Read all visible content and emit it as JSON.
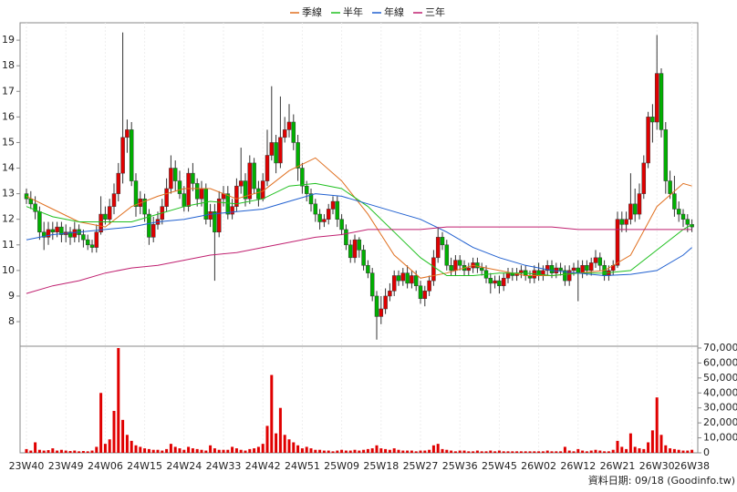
{
  "chart_data": {
    "type": "candlestick",
    "categories": [
      "23W40",
      null,
      null,
      null,
      null,
      null,
      null,
      null,
      null,
      "23W49",
      null,
      null,
      null,
      null,
      null,
      null,
      null,
      null,
      "24W06",
      null,
      null,
      null,
      null,
      null,
      null,
      null,
      null,
      "24W15",
      null,
      null,
      null,
      null,
      null,
      null,
      null,
      null,
      "24W24",
      null,
      null,
      null,
      null,
      null,
      null,
      null,
      null,
      "24W33",
      null,
      null,
      null,
      null,
      null,
      null,
      null,
      null,
      "24W42",
      null,
      null,
      null,
      null,
      null,
      null,
      null,
      null,
      "24W51",
      null,
      null,
      null,
      null,
      null,
      null,
      null,
      null,
      "25W09",
      null,
      null,
      null,
      null,
      null,
      null,
      null,
      null,
      "25W18",
      null,
      null,
      null,
      null,
      null,
      null,
      null,
      null,
      "25W27",
      null,
      null,
      null,
      null,
      null,
      null,
      null,
      null,
      "25W36",
      null,
      null,
      null,
      null,
      null,
      null,
      null,
      null,
      "25W45",
      null,
      null,
      null,
      null,
      null,
      null,
      null,
      null,
      "26W02",
      null,
      null,
      null,
      null,
      null,
      null,
      null,
      null,
      "26W12",
      null,
      null,
      null,
      null,
      null,
      null,
      null,
      null,
      "26W21",
      null,
      null,
      null,
      null,
      null,
      null,
      null,
      null,
      "26W30",
      null,
      null,
      null,
      null,
      null,
      null,
      null,
      "26W38"
    ],
    "open": [
      13.0,
      12.8,
      12.6,
      12.3,
      11.5,
      11.3,
      11.6,
      11.5,
      11.7,
      11.4,
      11.5,
      11.3,
      11.6,
      11.4,
      11.2,
      11.0,
      10.9,
      11.5,
      12.2,
      12.0,
      12.5,
      13.0,
      13.8,
      15.2,
      15.5,
      13.5,
      12.5,
      12.8,
      12.2,
      11.3,
      11.8,
      12.0,
      12.5,
      13.2,
      14.0,
      13.5,
      13.0,
      12.5,
      13.8,
      13.4,
      12.8,
      13.2,
      12.0,
      12.3,
      11.5,
      12.8,
      13.0,
      12.2,
      12.5,
      13.3,
      13.5,
      12.8,
      14.2,
      13.2,
      12.8,
      13.5,
      14.5,
      15.0,
      14.2,
      15.2,
      15.5,
      15.8,
      15.0,
      14.0,
      13.3,
      13.0,
      12.6,
      12.2,
      11.9,
      12.0,
      12.4,
      12.7,
      12.0,
      11.6,
      11.0,
      10.5,
      11.2,
      10.8,
      10.2,
      9.9,
      9.0,
      8.2,
      8.5,
      9.0,
      9.2,
      9.8,
      9.6,
      9.9,
      9.5,
      9.8,
      9.4,
      8.9,
      9.2,
      9.6,
      10.5,
      11.3,
      11.0,
      10.2,
      10.0,
      10.4,
      10.2,
      10.0,
      10.1,
      10.3,
      10.1,
      10.0,
      9.7,
      9.5,
      9.6,
      9.4,
      9.7,
      9.9,
      9.8,
      9.9,
      10.0,
      9.8,
      9.7,
      10.0,
      9.8,
      10.0,
      10.2,
      9.9,
      10.1,
      10.0,
      9.6,
      10.0,
      10.1,
      9.9,
      10.2,
      10.0,
      10.3,
      10.5,
      10.2,
      9.8,
      10.0,
      10.2,
      12.0,
      11.8,
      12.0,
      12.6,
      12.2,
      13.0,
      14.2,
      16.0,
      15.8,
      17.7,
      15.5,
      13.5,
      13.0,
      12.4,
      12.2,
      12.0,
      11.8
    ],
    "high": [
      13.2,
      13.1,
      12.9,
      12.5,
      11.9,
      11.9,
      11.9,
      11.9,
      11.9,
      11.8,
      11.7,
      11.9,
      11.8,
      11.6,
      11.4,
      11.2,
      11.8,
      12.9,
      12.5,
      12.8,
      13.4,
      14.2,
      19.3,
      15.9,
      15.8,
      13.8,
      13.1,
      13.0,
      12.4,
      12.1,
      12.3,
      12.8,
      13.6,
      14.5,
      14.3,
      13.9,
      13.3,
      14.0,
      14.2,
      13.6,
      13.5,
      13.4,
      12.6,
      12.6,
      13.1,
      13.3,
      13.3,
      12.8,
      13.6,
      14.8,
      13.8,
      14.5,
      14.4,
      13.5,
      13.8,
      15.5,
      17.2,
      15.3,
      16.8,
      16.0,
      16.5,
      16.1,
      15.3,
      14.2,
      13.5,
      13.2,
      12.8,
      12.4,
      12.2,
      12.6,
      12.9,
      12.9,
      12.2,
      11.8,
      11.2,
      11.4,
      11.3,
      11.0,
      10.4,
      10.1,
      9.2,
      9.0,
      9.3,
      9.5,
      10.0,
      10.0,
      10.1,
      10.2,
      10.0,
      10.0,
      9.6,
      9.4,
      9.8,
      10.8,
      11.7,
      11.5,
      11.2,
      10.5,
      10.6,
      10.6,
      10.4,
      10.3,
      10.5,
      10.5,
      10.3,
      10.2,
      9.9,
      9.8,
      9.8,
      9.9,
      10.1,
      10.1,
      10.1,
      10.2,
      10.2,
      10.0,
      10.2,
      10.3,
      10.2,
      10.4,
      10.4,
      10.3,
      10.3,
      10.2,
      10.2,
      10.3,
      10.4,
      10.4,
      10.4,
      10.5,
      10.8,
      10.7,
      10.4,
      10.2,
      10.4,
      12.3,
      12.3,
      12.3,
      13.8,
      13.2,
      13.4,
      14.5,
      16.2,
      16.5,
      19.2,
      17.9,
      15.8,
      13.9,
      13.7,
      12.7,
      12.4,
      12.2,
      12.0
    ],
    "low": [
      12.6,
      12.4,
      12.0,
      11.2,
      10.8,
      11.0,
      11.2,
      11.3,
      11.1,
      11.1,
      11.0,
      11.1,
      11.1,
      10.9,
      10.8,
      10.7,
      10.7,
      11.4,
      11.8,
      11.8,
      12.2,
      12.7,
      13.4,
      14.6,
      13.3,
      12.1,
      12.2,
      11.9,
      11.0,
      11.1,
      11.6,
      11.8,
      12.3,
      13.0,
      13.1,
      12.8,
      12.3,
      12.3,
      13.1,
      12.5,
      12.5,
      11.8,
      11.7,
      9.6,
      11.3,
      12.5,
      12.0,
      12.0,
      12.3,
      13.0,
      12.5,
      12.6,
      13.0,
      12.5,
      12.7,
      13.3,
      14.3,
      13.8,
      14.0,
      15.0,
      15.2,
      14.7,
      13.5,
      13.0,
      12.7,
      12.3,
      11.9,
      11.6,
      11.7,
      11.8,
      12.2,
      11.7,
      11.4,
      10.8,
      10.3,
      10.3,
      10.5,
      10.0,
      9.7,
      8.8,
      7.3,
      7.9,
      8.3,
      8.8,
      9.0,
      9.4,
      9.4,
      9.3,
      9.3,
      9.2,
      8.7,
      8.6,
      9.0,
      9.4,
      10.3,
      10.8,
      10.0,
      9.8,
      9.8,
      10.0,
      9.8,
      9.8,
      9.9,
      9.9,
      9.8,
      9.5,
      9.1,
      9.3,
      9.1,
      9.2,
      9.5,
      9.6,
      9.6,
      9.7,
      9.6,
      9.5,
      9.5,
      9.6,
      9.6,
      9.8,
      9.7,
      9.7,
      9.8,
      9.4,
      9.4,
      9.8,
      8.8,
      9.7,
      9.8,
      9.8,
      10.1,
      10.0,
      9.6,
      9.6,
      9.8,
      10.1,
      11.5,
      11.5,
      11.8,
      11.9,
      12.0,
      12.8,
      14.0,
      15.0,
      15.5,
      15.2,
      13.0,
      12.8,
      12.1,
      11.9,
      11.7,
      11.5,
      11.5
    ],
    "close": [
      12.8,
      12.6,
      12.3,
      11.5,
      11.3,
      11.6,
      11.5,
      11.7,
      11.4,
      11.5,
      11.3,
      11.6,
      11.4,
      11.2,
      11.0,
      10.9,
      11.5,
      12.2,
      12.0,
      12.5,
      13.0,
      13.8,
      15.2,
      15.5,
      13.5,
      12.5,
      12.8,
      12.2,
      11.3,
      11.8,
      12.0,
      12.5,
      13.2,
      14.0,
      13.5,
      13.0,
      12.5,
      13.8,
      13.4,
      12.8,
      13.2,
      12.0,
      12.3,
      11.5,
      12.8,
      13.0,
      12.2,
      12.5,
      13.3,
      13.5,
      12.8,
      14.2,
      13.2,
      12.8,
      13.5,
      14.5,
      15.0,
      14.2,
      15.2,
      15.5,
      15.8,
      15.0,
      14.0,
      13.3,
      13.0,
      12.6,
      12.2,
      11.9,
      12.0,
      12.4,
      12.7,
      12.0,
      11.6,
      11.0,
      10.5,
      11.2,
      10.8,
      10.2,
      9.9,
      9.0,
      8.2,
      8.5,
      9.0,
      9.2,
      9.8,
      9.6,
      9.9,
      9.5,
      9.8,
      9.4,
      8.9,
      9.2,
      9.6,
      10.5,
      11.3,
      11.0,
      10.2,
      10.0,
      10.4,
      10.2,
      10.0,
      10.1,
      10.3,
      10.1,
      10.0,
      9.7,
      9.5,
      9.6,
      9.4,
      9.7,
      9.9,
      9.8,
      9.9,
      10.0,
      9.8,
      9.7,
      10.0,
      9.8,
      10.0,
      10.2,
      9.9,
      10.1,
      10.0,
      9.6,
      10.0,
      10.1,
      9.9,
      10.2,
      10.0,
      10.3,
      10.5,
      10.2,
      9.8,
      10.0,
      10.2,
      12.0,
      11.8,
      12.0,
      12.6,
      12.2,
      13.0,
      14.2,
      16.0,
      15.8,
      17.7,
      15.5,
      13.5,
      13.0,
      12.4,
      12.2,
      12.0,
      11.8,
      11.7
    ],
    "up_color": "#e00000",
    "down_color": "#00b000",
    "ylim": [
      7.04,
      19.68
    ],
    "yticks": [
      8,
      9,
      10,
      11,
      12,
      13,
      14,
      15,
      16,
      17,
      18,
      19
    ],
    "moving_averages": [
      {
        "name": "季線",
        "color": "#e07020",
        "x": [
          0,
          6,
          12,
          18,
          24,
          30,
          36,
          42,
          48,
          54,
          60,
          66,
          72,
          78,
          84,
          90,
          96,
          102,
          108,
          114,
          120,
          126,
          132,
          138,
          144,
          150,
          152
        ],
        "values": [
          12.9,
          12.4,
          11.9,
          11.7,
          12.5,
          12.9,
          13.2,
          13.2,
          12.8,
          13.1,
          13.9,
          14.4,
          13.5,
          12.2,
          10.6,
          9.7,
          9.9,
          10.2,
          10.0,
          9.8,
          9.8,
          9.9,
          10.0,
          10.6,
          12.5,
          13.4,
          13.3
        ]
      },
      {
        "name": "半年",
        "color": "#20c020",
        "x": [
          0,
          6,
          12,
          18,
          24,
          30,
          36,
          42,
          48,
          54,
          60,
          66,
          72,
          78,
          84,
          90,
          96,
          102,
          108,
          114,
          120,
          126,
          132,
          138,
          144,
          150,
          152
        ],
        "values": [
          12.5,
          12.1,
          11.9,
          11.9,
          11.9,
          12.2,
          12.5,
          12.7,
          12.6,
          12.8,
          13.3,
          13.4,
          13.2,
          12.5,
          11.5,
          10.5,
          9.8,
          9.8,
          9.9,
          9.9,
          9.8,
          9.9,
          9.9,
          10.0,
          10.8,
          11.6,
          11.8
        ]
      },
      {
        "name": "年線",
        "color": "#2060d0",
        "x": [
          0,
          6,
          12,
          18,
          24,
          30,
          36,
          42,
          48,
          54,
          60,
          66,
          72,
          78,
          84,
          90,
          96,
          102,
          108,
          114,
          120,
          126,
          132,
          138,
          144,
          150,
          152
        ],
        "values": [
          11.2,
          11.4,
          11.5,
          11.6,
          11.7,
          11.9,
          12.0,
          12.2,
          12.3,
          12.4,
          12.7,
          13.0,
          12.9,
          12.6,
          12.3,
          12.0,
          11.5,
          10.9,
          10.5,
          10.2,
          10.0,
          9.9,
          9.8,
          9.85,
          10.0,
          10.6,
          10.9
        ]
      },
      {
        "name": "三年",
        "color": "#c02070",
        "x": [
          0,
          6,
          12,
          18,
          24,
          30,
          36,
          42,
          48,
          54,
          60,
          66,
          72,
          78,
          84,
          90,
          96,
          102,
          108,
          114,
          120,
          126,
          132,
          138,
          144,
          150,
          152
        ],
        "values": [
          9.1,
          9.4,
          9.6,
          9.9,
          10.1,
          10.2,
          10.4,
          10.6,
          10.7,
          10.9,
          11.1,
          11.3,
          11.4,
          11.6,
          11.6,
          11.6,
          11.7,
          11.7,
          11.7,
          11.7,
          11.7,
          11.6,
          11.6,
          11.6,
          11.6,
          11.6,
          11.6
        ]
      }
    ],
    "volume": {
      "color": "#e00000",
      "ylim": [
        0,
        71200
      ],
      "yticks": [
        0,
        {
          "value": 10000,
          "label": "10,000"
        },
        {
          "value": 20000,
          "label": "20,000"
        },
        {
          "value": 30000,
          "label": "30,000"
        },
        {
          "value": 40000,
          "label": "40,000"
        },
        {
          "value": 50000,
          "label": "50,000"
        },
        {
          "value": 60000,
          "label": "60,000"
        },
        {
          "value": 70000,
          "label": "70,000"
        }
      ],
      "values": [
        2500,
        1500,
        7000,
        2000,
        1500,
        1800,
        3000,
        1500,
        2000,
        1500,
        1200,
        1500,
        1000,
        1200,
        1000,
        1500,
        4000,
        40000,
        6000,
        9000,
        28000,
        70000,
        22000,
        12000,
        8000,
        5000,
        4000,
        3000,
        2500,
        2000,
        2000,
        1500,
        2500,
        6000,
        4000,
        3000,
        2000,
        4000,
        3000,
        2500,
        2000,
        1500,
        5000,
        3000,
        2000,
        2000,
        2000,
        4000,
        3000,
        2000,
        1500,
        2500,
        3000,
        4000,
        6000,
        18000,
        52000,
        13000,
        30000,
        12000,
        9000,
        7000,
        5000,
        3000,
        4000,
        3000,
        2000,
        2000,
        1500,
        1500,
        1000,
        1500,
        2000,
        1500,
        1500,
        2000,
        1500,
        2000,
        2500,
        3000,
        5000,
        3000,
        2500,
        2000,
        3000,
        2000,
        1500,
        1500,
        1500,
        1000,
        1500,
        1500,
        2000,
        5000,
        6000,
        2500,
        2000,
        1500,
        1000,
        1500,
        1500,
        1000,
        1000,
        1500,
        1000,
        1000,
        1500,
        1000,
        1500,
        1000,
        1000,
        1000,
        1000,
        1000,
        1000,
        1000,
        1000,
        1000,
        1000,
        1500,
        1000,
        1000,
        1000,
        4000,
        1500,
        1000,
        2500,
        1500,
        1000,
        1500,
        2000,
        1500,
        1000,
        1000,
        2000,
        8000,
        4000,
        2500,
        13000,
        4000,
        3000,
        2500,
        7000,
        15000,
        37000,
        12000,
        5000,
        3000,
        2500,
        2000,
        1500,
        1500,
        2000
      ]
    },
    "source": "資料日期: 09/18 (Goodinfo.tw)"
  }
}
